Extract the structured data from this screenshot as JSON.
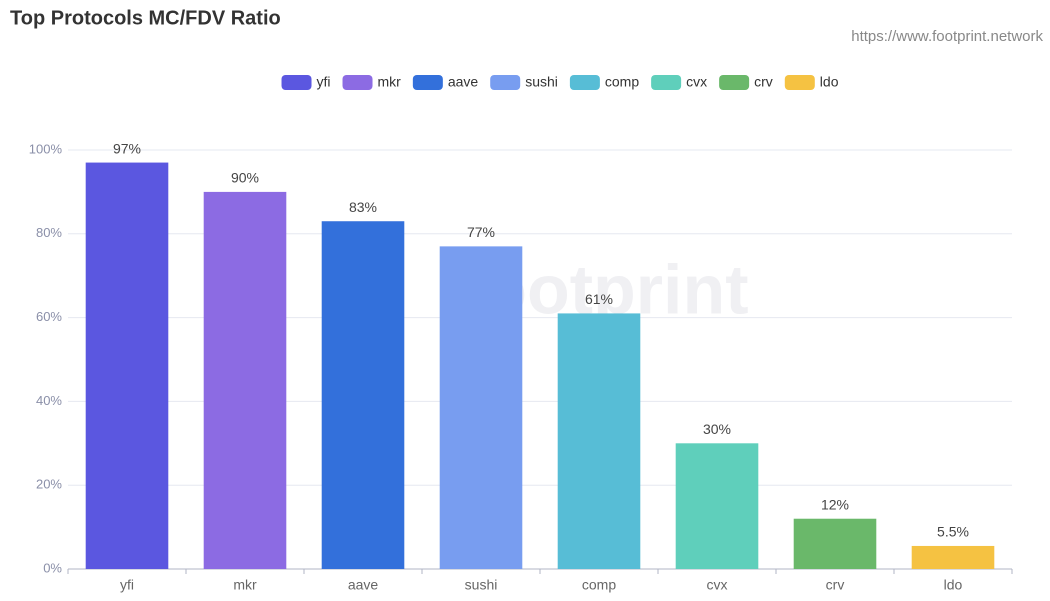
{
  "chart_data": {
    "type": "bar",
    "title": "Top Protocols MC/FDV Ratio",
    "source": "https://www.footprint.network",
    "watermark": "Footprint",
    "categories": [
      "yfi",
      "mkr",
      "aave",
      "sushi",
      "comp",
      "cvx",
      "crv",
      "ldo"
    ],
    "values": [
      97,
      90,
      83,
      77,
      61,
      30,
      12,
      5.5
    ],
    "value_labels": [
      "97%",
      "90%",
      "83%",
      "77%",
      "61%",
      "30%",
      "12%",
      "5.5%"
    ],
    "colors": [
      "#5b57e0",
      "#8c6be3",
      "#3370db",
      "#789df0",
      "#57bdd6",
      "#5fcfbb",
      "#6ab86a",
      "#f5c242"
    ],
    "ylim": [
      0,
      100
    ],
    "yticks": [
      {
        "value": 0,
        "label": "0%"
      },
      {
        "value": 20,
        "label": "20%"
      },
      {
        "value": 40,
        "label": "40%"
      },
      {
        "value": 60,
        "label": "60%"
      },
      {
        "value": 80,
        "label": "80%"
      },
      {
        "value": 100,
        "label": "100%"
      }
    ],
    "grid": true,
    "legend": "top"
  }
}
